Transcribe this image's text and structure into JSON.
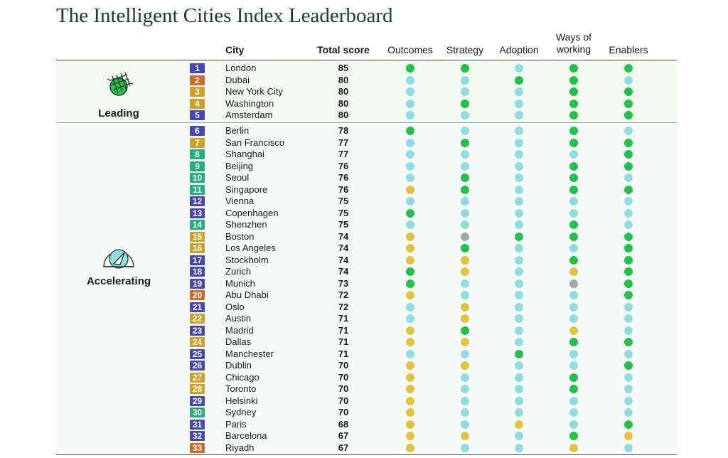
{
  "title": "The Intelligent Cities Index Leaderboard",
  "colors": {
    "green": "#20c24a",
    "teal": "#8fdde0",
    "yellow": "#e3c33d",
    "gray": "#a8a8a8",
    "rank_blue": "#4646b4",
    "rank_orange": "#d26a2c",
    "rank_gold": "#d0a12a",
    "rank_green": "#23b07c"
  },
  "chart_data": {
    "type": "table",
    "title": "The Intelligent Cities Index Leaderboard",
    "columns": {
      "city": "City",
      "total_score": "Total score",
      "outcomes": "Outcomes",
      "strategy": "Strategy",
      "adoption": "Adoption",
      "ways_line1": "Ways of",
      "ways_line2": "working",
      "enablers": "Enablers"
    },
    "groups": [
      {
        "label": "Leading",
        "icon": "leading-net-icon"
      },
      {
        "label": "Accelerating",
        "icon": "accelerating-gauge-icon"
      }
    ],
    "rows": [
      {
        "rank": "1",
        "city": "London",
        "score": "85",
        "rank_color": "rank_blue",
        "dots": [
          "green",
          "green",
          "teal",
          "green",
          "green"
        ]
      },
      {
        "rank": "2",
        "city": "Dubai",
        "score": "80",
        "rank_color": "rank_orange",
        "dots": [
          "teal",
          "teal",
          "green",
          "green",
          "teal"
        ]
      },
      {
        "rank": "3",
        "city": "New York City",
        "score": "80",
        "rank_color": "rank_gold",
        "dots": [
          "teal",
          "teal",
          "teal",
          "green",
          "green"
        ]
      },
      {
        "rank": "4",
        "city": "Washington",
        "score": "80",
        "rank_color": "rank_gold",
        "dots": [
          "teal",
          "green",
          "teal",
          "green",
          "green"
        ]
      },
      {
        "rank": "5",
        "city": "Amsterdam",
        "score": "80",
        "rank_color": "rank_blue",
        "dots": [
          "teal",
          "teal",
          "teal",
          "green",
          "green"
        ]
      },
      {
        "rank": "6",
        "city": "Berlin",
        "score": "78",
        "rank_color": "rank_blue",
        "dots": [
          "green",
          "teal",
          "teal",
          "green",
          "teal"
        ]
      },
      {
        "rank": "7",
        "city": "San Francisco",
        "score": "77",
        "rank_color": "rank_gold",
        "dots": [
          "teal",
          "green",
          "teal",
          "green",
          "green"
        ]
      },
      {
        "rank": "8",
        "city": "Shanghai",
        "score": "77",
        "rank_color": "rank_green",
        "dots": [
          "teal",
          "teal",
          "teal",
          "teal",
          "green"
        ]
      },
      {
        "rank": "9",
        "city": "Beijing",
        "score": "76",
        "rank_color": "rank_green",
        "dots": [
          "teal",
          "teal",
          "teal",
          "green",
          "green"
        ]
      },
      {
        "rank": "10",
        "city": "Seoul",
        "score": "76",
        "rank_color": "rank_green",
        "dots": [
          "teal",
          "green",
          "teal",
          "green",
          "teal"
        ]
      },
      {
        "rank": "11",
        "city": "Singapore",
        "score": "76",
        "rank_color": "rank_green",
        "dots": [
          "yellow",
          "green",
          "teal",
          "green",
          "green"
        ]
      },
      {
        "rank": "12",
        "city": "Vienna",
        "score": "75",
        "rank_color": "rank_blue",
        "dots": [
          "teal",
          "teal",
          "teal",
          "teal",
          "teal"
        ]
      },
      {
        "rank": "13",
        "city": "Copenhagen",
        "score": "75",
        "rank_color": "rank_blue",
        "dots": [
          "green",
          "teal",
          "teal",
          "teal",
          "teal"
        ]
      },
      {
        "rank": "14",
        "city": "Shenzhen",
        "score": "75",
        "rank_color": "rank_green",
        "dots": [
          "teal",
          "teal",
          "teal",
          "green",
          "teal"
        ]
      },
      {
        "rank": "15",
        "city": "Boston",
        "score": "74",
        "rank_color": "rank_gold",
        "dots": [
          "yellow",
          "gray",
          "green",
          "green",
          "green"
        ]
      },
      {
        "rank": "16",
        "city": "Los Angeles",
        "score": "74",
        "rank_color": "rank_gold",
        "dots": [
          "yellow",
          "green",
          "teal",
          "teal",
          "green"
        ]
      },
      {
        "rank": "17",
        "city": "Stockholm",
        "score": "74",
        "rank_color": "rank_blue",
        "dots": [
          "yellow",
          "yellow",
          "teal",
          "green",
          "green"
        ]
      },
      {
        "rank": "18",
        "city": "Zurich",
        "score": "74",
        "rank_color": "rank_blue",
        "dots": [
          "green",
          "yellow",
          "teal",
          "yellow",
          "green"
        ]
      },
      {
        "rank": "19",
        "city": "Munich",
        "score": "73",
        "rank_color": "rank_blue",
        "dots": [
          "green",
          "teal",
          "teal",
          "gray",
          "green"
        ]
      },
      {
        "rank": "20",
        "city": "Abu Dhabi",
        "score": "72",
        "rank_color": "rank_orange",
        "dots": [
          "yellow",
          "teal",
          "teal",
          "teal",
          "green"
        ]
      },
      {
        "rank": "21",
        "city": "Oslo",
        "score": "72",
        "rank_color": "rank_blue",
        "dots": [
          "teal",
          "yellow",
          "teal",
          "teal",
          "teal"
        ]
      },
      {
        "rank": "22",
        "city": "Austin",
        "score": "71",
        "rank_color": "rank_gold",
        "dots": [
          "teal",
          "yellow",
          "teal",
          "teal",
          "teal"
        ]
      },
      {
        "rank": "23",
        "city": "Madrid",
        "score": "71",
        "rank_color": "rank_blue",
        "dots": [
          "yellow",
          "green",
          "teal",
          "yellow",
          "teal"
        ]
      },
      {
        "rank": "24",
        "city": "Dallas",
        "score": "71",
        "rank_color": "rank_gold",
        "dots": [
          "yellow",
          "yellow",
          "teal",
          "green",
          "green"
        ]
      },
      {
        "rank": "25",
        "city": "Manchester",
        "score": "71",
        "rank_color": "rank_blue",
        "dots": [
          "teal",
          "teal",
          "green",
          "teal",
          "teal"
        ]
      },
      {
        "rank": "26",
        "city": "Dublin",
        "score": "70",
        "rank_color": "rank_blue",
        "dots": [
          "yellow",
          "yellow",
          "teal",
          "teal",
          "green"
        ]
      },
      {
        "rank": "27",
        "city": "Chicago",
        "score": "70",
        "rank_color": "rank_gold",
        "dots": [
          "yellow",
          "teal",
          "teal",
          "green",
          "teal"
        ]
      },
      {
        "rank": "28",
        "city": "Toronto",
        "score": "70",
        "rank_color": "rank_gold",
        "dots": [
          "yellow",
          "teal",
          "teal",
          "green",
          "teal"
        ]
      },
      {
        "rank": "29",
        "city": "Helsinki",
        "score": "70",
        "rank_color": "rank_blue",
        "dots": [
          "yellow",
          "teal",
          "teal",
          "teal",
          "teal"
        ]
      },
      {
        "rank": "30",
        "city": "Sydney",
        "score": "70",
        "rank_color": "rank_green",
        "dots": [
          "yellow",
          "teal",
          "teal",
          "teal",
          "teal"
        ]
      },
      {
        "rank": "31",
        "city": "Paris",
        "score": "68",
        "rank_color": "rank_blue",
        "dots": [
          "yellow",
          "teal",
          "yellow",
          "teal",
          "green"
        ]
      },
      {
        "rank": "32",
        "city": "Barcelona",
        "score": "67",
        "rank_color": "rank_blue",
        "dots": [
          "yellow",
          "yellow",
          "teal",
          "green",
          "yellow"
        ]
      },
      {
        "rank": "33",
        "city": "Riyadh",
        "score": "67",
        "rank_color": "rank_orange",
        "dots": [
          "yellow",
          "teal",
          "teal",
          "yellow",
          "teal"
        ]
      }
    ]
  }
}
